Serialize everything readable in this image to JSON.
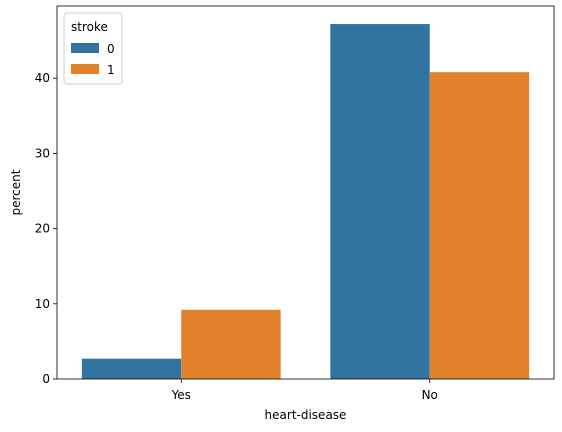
{
  "chart_data": {
    "type": "bar",
    "categories": [
      "Yes",
      "No"
    ],
    "series": [
      {
        "name": "0",
        "values": [
          2.7,
          47.2
        ],
        "color": "#3274a1"
      },
      {
        "name": "1",
        "values": [
          9.2,
          40.8
        ],
        "color": "#e1812c"
      }
    ],
    "xlabel": "heart-disease",
    "ylabel": "percent",
    "ylim": [
      0,
      49.6
    ],
    "yticks": [
      0,
      10,
      20,
      30,
      40
    ],
    "legend": {
      "title": "stroke",
      "placement": "top-left"
    },
    "grid": false
  }
}
